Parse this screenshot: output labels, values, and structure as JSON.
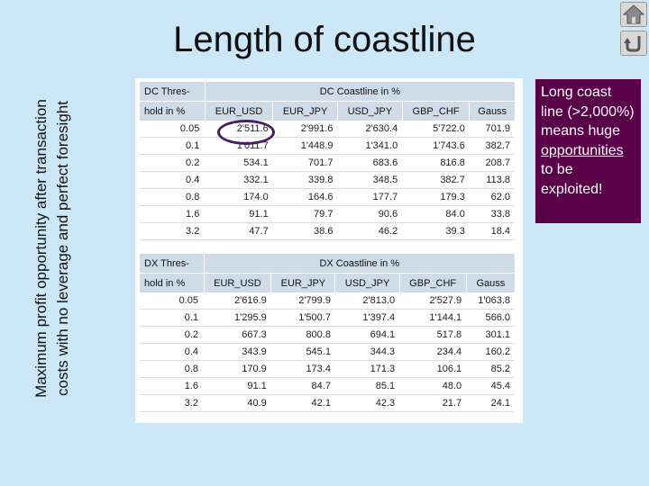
{
  "slide": {
    "title": "Length of coastline",
    "side_label": "Maximum profit opportunity after transaction costs with no leverage and perfect foresight",
    "callout": {
      "line1": "Long coast line (>2,000%) means huge",
      "underlined": "opportunities",
      "line2": "to be exploited!"
    },
    "nav": {
      "home_icon": "home-icon",
      "back_icon": "return-arrow-icon"
    }
  },
  "table_dc": {
    "corner_top": "DC Thres-",
    "corner_bottom": "hold in %",
    "group_header": "DC Coastline in %",
    "columns": [
      "EUR_USD",
      "EUR_JPY",
      "USD_JPY",
      "GBP_CHF",
      "Gauss"
    ],
    "rows": [
      {
        "threshold": "0.05",
        "cells": [
          "2'511.6",
          "2'991.6",
          "2'630.4",
          "5'722.0",
          "701.9"
        ]
      },
      {
        "threshold": "0.1",
        "cells": [
          "1'011.7",
          "1'448.9",
          "1'341.0",
          "1'743.6",
          "382.7"
        ]
      },
      {
        "threshold": "0.2",
        "cells": [
          "534.1",
          "701.7",
          "683.6",
          "816.8",
          "208.7"
        ]
      },
      {
        "threshold": "0.4",
        "cells": [
          "332.1",
          "339.8",
          "348.5",
          "382.7",
          "113.8"
        ]
      },
      {
        "threshold": "0.8",
        "cells": [
          "174.0",
          "164.6",
          "177.7",
          "179.3",
          "62.0"
        ]
      },
      {
        "threshold": "1.6",
        "cells": [
          "91.1",
          "79.7",
          "90.6",
          "84.0",
          "33.8"
        ]
      },
      {
        "threshold": "3.2",
        "cells": [
          "47.7",
          "38.6",
          "46.2",
          "39.3",
          "18.4"
        ]
      }
    ]
  },
  "table_dx": {
    "corner_top": "DX Thres-",
    "corner_bottom": "hold in %",
    "group_header": "DX Coastline in %",
    "columns": [
      "EUR_USD",
      "EUR_JPY",
      "USD_JPY",
      "GBP_CHF",
      "Gauss"
    ],
    "rows": [
      {
        "threshold": "0.05",
        "cells": [
          "2'616.9",
          "2'799.9",
          "2'813.0",
          "2'527.9",
          "1'063.8"
        ]
      },
      {
        "threshold": "0.1",
        "cells": [
          "1'295.9",
          "1'500.7",
          "1'397.4",
          "1'144.1",
          "566.0"
        ]
      },
      {
        "threshold": "0.2",
        "cells": [
          "667.3",
          "800.8",
          "694.1",
          "517.8",
          "301.1"
        ]
      },
      {
        "threshold": "0.4",
        "cells": [
          "343.9",
          "545.1",
          "344.3",
          "234.4",
          "160.2"
        ]
      },
      {
        "threshold": "0.8",
        "cells": [
          "170.9",
          "173.4",
          "171.3",
          "106.1",
          "85.2"
        ]
      },
      {
        "threshold": "1.6",
        "cells": [
          "91.1",
          "84.7",
          "85.1",
          "48.0",
          "45.4"
        ]
      },
      {
        "threshold": "3.2",
        "cells": [
          "40.9",
          "42.1",
          "42.3",
          "21.7",
          "24.1"
        ]
      }
    ]
  }
}
